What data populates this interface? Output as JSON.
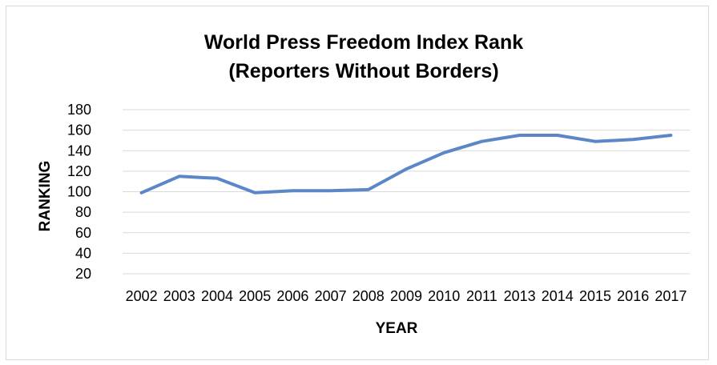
{
  "chart_data": {
    "type": "line",
    "title": [
      "World Press Freedom Index Rank",
      "(Reporters Without Borders)"
    ],
    "xlabel": "YEAR",
    "ylabel": "RANKING",
    "categories": [
      "2002",
      "2003",
      "2004",
      "2005",
      "2006",
      "2007",
      "2008",
      "2009",
      "2010",
      "2011",
      "2013",
      "2014",
      "2015",
      "2016",
      "2017"
    ],
    "series": [
      {
        "values": [
          99,
          115,
          113,
          99,
          101,
          101,
          102,
          122,
          138,
          149,
          155,
          155,
          149,
          151,
          155
        ]
      }
    ],
    "ylim": [
      20,
      180
    ],
    "yticks": [
      20,
      40,
      60,
      80,
      100,
      120,
      140,
      160,
      180
    ],
    "grid": true,
    "legend": "none",
    "colors": {
      "series": "#5b86c8",
      "grid": "#d9d9d9"
    }
  }
}
